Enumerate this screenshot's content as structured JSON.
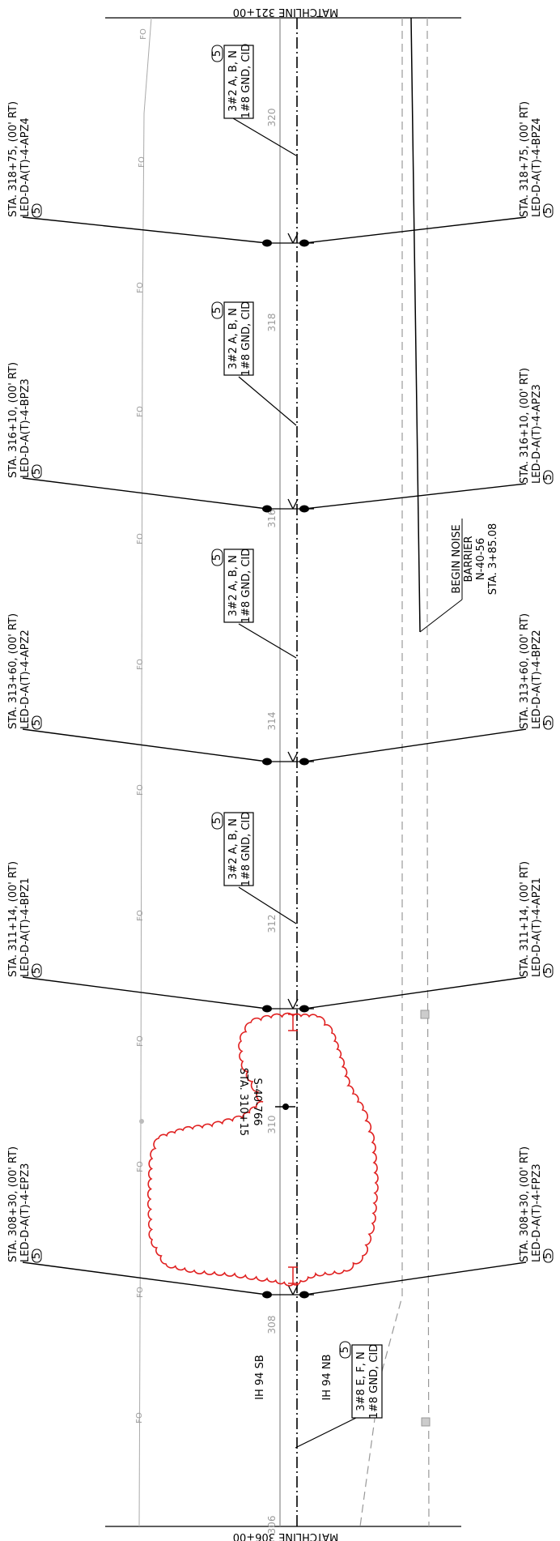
{
  "matchlines": {
    "top": "MATCHLINE 321+00",
    "bottom": "MATCHLINE 306+00"
  },
  "roadways": {
    "sb": "IH 94 SB",
    "nb": "IH 94 NB"
  },
  "fiber_marker": "FO",
  "stations": [
    "320",
    "318",
    "316",
    "314",
    "312",
    "310",
    "308",
    "306"
  ],
  "poles": [
    {
      "left": {
        "sta": "STA. 318+75, (00' RT)",
        "code": "LED-D-A(T)-4-APZ4",
        "tag": "5"
      },
      "right": {
        "sta": "STA. 318+75, (00' RT)",
        "code": "LED-D-A(T)-4-BPZ4",
        "tag": "5"
      }
    },
    {
      "left": {
        "sta": "STA. 316+10, (00' RT)",
        "code": "LED-D-A(T)-4-BPZ3",
        "tag": "5"
      },
      "right": {
        "sta": "STA. 316+10, (00' RT)",
        "code": "LED-D-A(T)-4-APZ3",
        "tag": "5"
      }
    },
    {
      "left": {
        "sta": "STA. 313+60, (00' RT)",
        "code": "LED-D-A(T)-4-APZ2",
        "tag": "5"
      },
      "right": {
        "sta": "STA. 313+60, (00' RT)",
        "code": "LED-D-A(T)-4-BPZ2",
        "tag": "5"
      }
    },
    {
      "left": {
        "sta": "STA. 311+14, (00' RT)",
        "code": "LED-D-A(T)-4-BPZ1",
        "tag": "5"
      },
      "right": {
        "sta": "STA. 311+14, (00' RT)",
        "code": "LED-D-A(T)-4-APZ1",
        "tag": "5"
      }
    },
    {
      "left": {
        "sta": "STA. 308+30, (00' RT)",
        "code": "LED-D-A(T)-4-EPZ3",
        "tag": "5"
      },
      "right": {
        "sta": "STA. 308+30, (00' RT)",
        "code": "LED-D-A(T)-4-FPZ3",
        "tag": "5"
      }
    }
  ],
  "cables": [
    {
      "tag": "5",
      "line1": "3#2 A, B, N",
      "line2": "1#8 GND, CID"
    },
    {
      "tag": "5",
      "line1": "3#2 A, B, N",
      "line2": "1#8 GND, CID"
    },
    {
      "tag": "5",
      "line1": "3#2 A, B, N",
      "line2": "1#8 GND, CID"
    },
    {
      "tag": "5",
      "line1": "3#2 A, B, N",
      "line2": "1#8 GND, CID"
    },
    {
      "tag": "5",
      "line1": "3#8 E, F, N",
      "line2": "1#8 GND, CID"
    }
  ],
  "noise_barrier": {
    "l1": "BEGIN NOISE",
    "l2": "BARRIER",
    "l3": "N-40-56",
    "l4": "STA. 3+85.08"
  },
  "revision_note": {
    "l1": "S-40-766",
    "l2": "STA. 310+15"
  },
  "colors": {
    "ink": "#000000",
    "gray": "#9a9a9a",
    "revision": "#e02020"
  }
}
